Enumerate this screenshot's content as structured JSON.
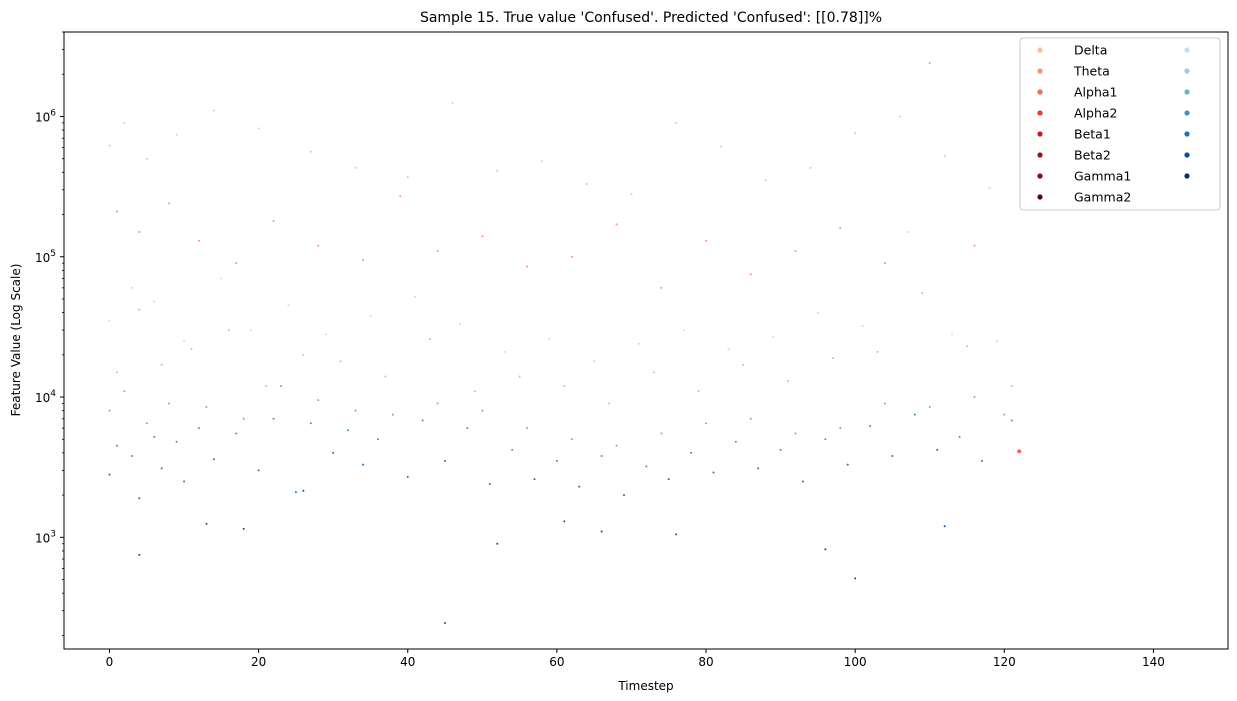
{
  "chart_data": {
    "type": "scatter",
    "title": "Sample 15. True value 'Confused'. Predicted 'Confused': [[0.78]]%",
    "xlabel": "Timestep",
    "ylabel": "Feature Value (Log Scale)",
    "xlim": [
      -6.1,
      150
    ],
    "ylim": [
      160,
      4000000
    ],
    "yscale": "log",
    "x_ticks": [
      0,
      20,
      40,
      60,
      80,
      100,
      120,
      140
    ],
    "y_ticks": [
      {
        "value": 1000,
        "base": "10",
        "exp": "3"
      },
      {
        "value": 10000,
        "base": "10",
        "exp": "4"
      },
      {
        "value": 100000,
        "base": "10",
        "exp": "5"
      },
      {
        "value": 1000000,
        "base": "10",
        "exp": "6"
      }
    ],
    "grid": false,
    "legend_position": "upper-right",
    "legend_columns": 2,
    "series": [
      {
        "name": "Delta",
        "color": "#fcbba1",
        "x": [
          0,
          2,
          5,
          9,
          14,
          20,
          27,
          33,
          40,
          46,
          52,
          58,
          64,
          70,
          76,
          82,
          88,
          94,
          100,
          106,
          112,
          118
        ],
        "values": [
          620000,
          900000,
          500000,
          740000,
          1100000,
          820000,
          560000,
          430000,
          370000,
          1250000,
          410000,
          480000,
          330000,
          280000,
          900000,
          610000,
          350000,
          430000,
          760000,
          1000000,
          520000,
          310000
        ]
      },
      {
        "name": "Theta",
        "color": "#fc9272",
        "x": [
          1,
          4,
          8,
          12,
          17,
          22,
          28,
          34,
          39,
          44,
          50,
          56,
          62,
          68,
          74,
          80,
          86,
          92,
          98,
          104,
          110,
          116
        ],
        "values": [
          210000,
          150000,
          240000,
          130000,
          90000,
          180000,
          120000,
          95000,
          270000,
          110000,
          140000,
          85000,
          100000,
          170000,
          60000,
          130000,
          75000,
          110000,
          160000,
          90000,
          2400000,
          120000
        ]
      },
      {
        "name": "Alpha1",
        "color": "#fb6a4a",
        "x": [
          122
        ],
        "values": [
          4100
        ]
      },
      {
        "name": "Alpha2",
        "color": "#ef3b2c",
        "x": [],
        "values": []
      },
      {
        "name": "Beta1",
        "color": "#cb181d",
        "x": [],
        "values": []
      },
      {
        "name": "Beta2",
        "color": "#a50f15",
        "x": [],
        "values": []
      },
      {
        "name": "Gamma1",
        "color": "#99000d",
        "x": [],
        "values": []
      },
      {
        "name": "Gamma2",
        "color": "#67000d",
        "x": [],
        "values": []
      },
      {
        "name": "",
        "color": "#c6dbef",
        "x": [
          0,
          3,
          6,
          10,
          15,
          19,
          24,
          29,
          35,
          41,
          47,
          53,
          59,
          65,
          71,
          77,
          83,
          89,
          95,
          101,
          107,
          113,
          119
        ],
        "values": [
          35000,
          60000,
          48000,
          25000,
          70000,
          30000,
          45000,
          28000,
          38000,
          52000,
          33000,
          21000,
          26000,
          18000,
          24000,
          30000,
          22000,
          27000,
          40000,
          32000,
          150000,
          28000,
          25000
        ]
      },
      {
        "name": "",
        "color": "#9ecae1",
        "x": [
          1,
          4,
          7,
          11,
          16,
          21,
          26,
          31,
          37,
          43,
          49,
          55,
          61,
          67,
          73,
          79,
          85,
          91,
          97,
          103,
          109,
          115,
          121
        ],
        "values": [
          15000,
          42000,
          17000,
          22000,
          30000,
          12000,
          20000,
          18000,
          14000,
          26000,
          11000,
          14000,
          12000,
          9000,
          15000,
          11000,
          17000,
          13000,
          19000,
          21000,
          55000,
          23000,
          12000
        ]
      },
      {
        "name": "",
        "color": "#6baed6",
        "x": [
          0,
          2,
          5,
          8,
          13,
          18,
          23,
          28,
          33,
          38,
          44,
          50,
          56,
          62,
          68,
          74,
          80,
          86,
          92,
          98,
          104,
          110,
          116,
          120
        ],
        "values": [
          8000,
          11000,
          6500,
          9000,
          8500,
          7000,
          12000,
          9500,
          8000,
          7500,
          9000,
          8000,
          6000,
          5000,
          4500,
          5500,
          6500,
          7000,
          5500,
          6000,
          9000,
          8500,
          10000,
          7500
        ]
      },
      {
        "name": "",
        "color": "#4292c6",
        "x": [
          1,
          3,
          6,
          9,
          12,
          17,
          22,
          27,
          32,
          36,
          42,
          48,
          54,
          60,
          66,
          72,
          78,
          84,
          90,
          96,
          102,
          108,
          114,
          121
        ],
        "values": [
          4500,
          3800,
          5200,
          4800,
          6000,
          5500,
          7000,
          6500,
          5800,
          5000,
          6800,
          6000,
          4200,
          3500,
          3800,
          3200,
          4000,
          4800,
          4200,
          5000,
          6200,
          7500,
          5200,
          6800
        ]
      },
      {
        "name": "",
        "color": "#2171b5",
        "x": [
          0,
          4,
          7,
          10,
          14,
          20,
          25,
          30,
          34,
          40,
          45,
          51,
          57,
          63,
          69,
          75,
          81,
          87,
          93,
          99,
          105,
          111,
          117
        ],
        "values": [
          2800,
          1900,
          3100,
          2500,
          3600,
          3000,
          2100,
          4000,
          3300,
          2700,
          3500,
          2400,
          2600,
          2300,
          2000,
          2600,
          2900,
          3100,
          2500,
          3300,
          3800,
          4200,
          3500
        ]
      },
      {
        "name": "",
        "color": "#08519c",
        "x": [
          4,
          13,
          18,
          26,
          45,
          52,
          61,
          66,
          76,
          96,
          100,
          112
        ],
        "values": [
          750,
          1250,
          1150,
          2150,
          245,
          900,
          1300,
          1100,
          1050,
          820,
          510,
          1200
        ]
      },
      {
        "name": "",
        "color": "#08306b",
        "x": [],
        "values": []
      }
    ]
  }
}
